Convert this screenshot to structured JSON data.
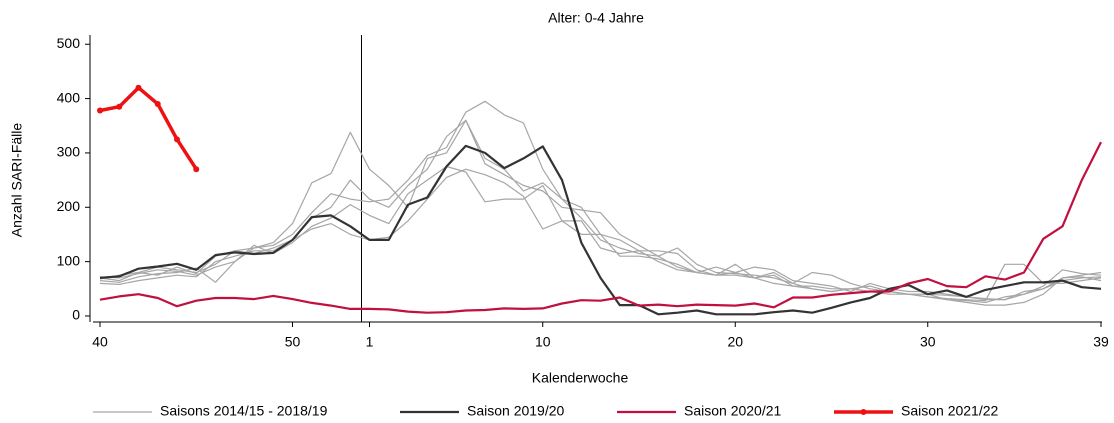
{
  "chart_data": {
    "type": "line",
    "title": "Alter: 0-4 Jahre",
    "x_label": "Kalenderwoche",
    "y_label": "Anzahl SARI-Fälle",
    "categories": [
      "40",
      null,
      null,
      null,
      null,
      null,
      null,
      null,
      null,
      null,
      "50",
      null,
      null,
      null,
      "1",
      null,
      null,
      null,
      null,
      null,
      null,
      null,
      null,
      "10",
      null,
      null,
      null,
      null,
      null,
      null,
      null,
      null,
      null,
      "20",
      null,
      null,
      null,
      null,
      null,
      null,
      null,
      null,
      null,
      "30",
      null,
      null,
      null,
      null,
      null,
      null,
      null,
      null,
      "39"
    ],
    "ylim": [
      -10,
      517
    ],
    "yticks": [
      0,
      100,
      200,
      300,
      400,
      500
    ],
    "series": [
      {
        "name": "Saisons 2014/15 - 2018/19",
        "color": "#a6a6a6",
        "linewidth": 1.2,
        "values": [
          [
            65,
            62,
            72,
            78,
            80,
            88,
            62,
            100,
            125,
            135,
            170,
            245,
            262,
            338,
            270,
            240,
            200,
            290,
            300,
            360,
            280,
            260,
            240,
            230,
            200,
            195,
            190,
            150,
            130,
            110,
            90,
            80,
            75,
            75,
            70,
            80,
            60,
            50,
            45,
            50,
            45,
            45,
            40,
            35,
            30,
            25,
            20,
            20,
            25,
            40,
            70,
            75,
            80
          ],
          [
            70,
            65,
            80,
            90,
            85,
            80,
            95,
            120,
            115,
            125,
            140,
            180,
            200,
            250,
            215,
            200,
            240,
            270,
            330,
            360,
            290,
            270,
            230,
            245,
            215,
            200,
            150,
            140,
            120,
            100,
            85,
            80,
            90,
            80,
            70,
            60,
            55,
            50,
            45,
            50,
            45,
            40,
            40,
            35,
            32,
            30,
            28,
            95,
            95,
            60,
            60,
            65,
            70
          ],
          [
            68,
            75,
            80,
            75,
            90,
            78,
            110,
            120,
            125,
            130,
            150,
            190,
            225,
            215,
            210,
            215,
            250,
            295,
            310,
            375,
            395,
            370,
            355,
            270,
            215,
            180,
            140,
            125,
            115,
            110,
            125,
            95,
            80,
            78,
            75,
            70,
            60,
            80,
            75,
            60,
            50,
            45,
            40,
            40,
            30,
            28,
            25,
            35,
            40,
            55,
            85,
            78,
            75
          ],
          [
            72,
            70,
            78,
            85,
            82,
            75,
            90,
            100,
            130,
            115,
            135,
            165,
            180,
            205,
            185,
            170,
            225,
            250,
            275,
            265,
            210,
            215,
            215,
            240,
            175,
            175,
            125,
            115,
            120,
            120,
            115,
            85,
            75,
            80,
            90,
            85,
            65,
            60,
            55,
            45,
            60,
            50,
            45,
            45,
            40,
            35,
            30,
            30,
            45,
            50,
            70,
            72,
            65
          ],
          [
            60,
            58,
            65,
            70,
            75,
            72,
            100,
            110,
            120,
            120,
            140,
            160,
            170,
            150,
            140,
            145,
            175,
            215,
            255,
            270,
            260,
            245,
            220,
            160,
            175,
            150,
            150,
            110,
            110,
            105,
            95,
            80,
            75,
            95,
            70,
            75,
            55,
            55,
            50,
            50,
            55,
            45,
            40,
            40,
            38,
            35,
            32,
            30,
            40,
            50,
            65,
            70,
            72
          ]
        ]
      },
      {
        "name": "Saison 2019/20",
        "color": "#333333",
        "linewidth": 2.2,
        "values": [
          70,
          73,
          87,
          91,
          96,
          85,
          112,
          117,
          114,
          116,
          140,
          182,
          185,
          165,
          140,
          140,
          205,
          218,
          275,
          313,
          300,
          272,
          290,
          312,
          250,
          135,
          70,
          20,
          20,
          3,
          6,
          10,
          3,
          3,
          3,
          7,
          10,
          6,
          15,
          25,
          33,
          50,
          57,
          40,
          47,
          35,
          48,
          55,
          62,
          62,
          65,
          53,
          50
        ]
      },
      {
        "name": "Saison 2020/21",
        "color": "#c0103f",
        "linewidth": 2.2,
        "values": [
          30,
          36,
          40,
          33,
          18,
          28,
          33,
          33,
          31,
          37,
          31,
          24,
          19,
          13,
          13,
          12,
          8,
          6,
          7,
          10,
          11,
          14,
          13,
          14,
          23,
          29,
          28,
          34,
          19,
          21,
          18,
          21,
          20,
          19,
          23,
          16,
          34,
          34,
          39,
          42,
          45,
          45,
          60,
          68,
          55,
          53,
          73,
          67,
          80,
          142,
          165,
          250,
          320
        ]
      },
      {
        "name": "Saison 2021/22",
        "color": "#ee1111",
        "linewidth": 3.5,
        "markers": true,
        "values": [
          378,
          385,
          420,
          390,
          325,
          270,
          null,
          null,
          null,
          null,
          null,
          null,
          null,
          null,
          null,
          null,
          null,
          null,
          null,
          null,
          null,
          null,
          null,
          null,
          null,
          null,
          null,
          null,
          null,
          null,
          null,
          null,
          null,
          null,
          null,
          null,
          null,
          null,
          null,
          null,
          null,
          null,
          null,
          null,
          null,
          null,
          null,
          null,
          null,
          null,
          null,
          null,
          null
        ]
      }
    ]
  }
}
